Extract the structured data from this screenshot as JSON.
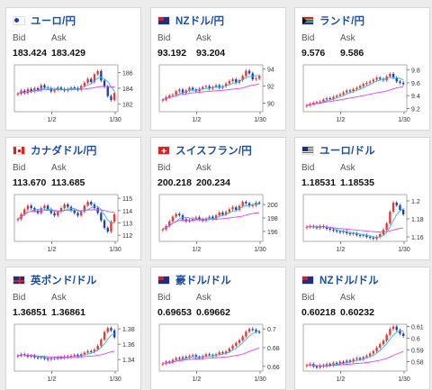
{
  "labels": {
    "bid": "Bid",
    "ask": "Ask"
  },
  "colors": {
    "up": "#e53935",
    "down": "#1f3fb0",
    "ma_short": "#29b6f6",
    "ma_long": "#e040fb",
    "title": "#1a4fa0"
  },
  "cards": [
    {
      "name": "ユーロ/円",
      "flag_icon": "flag-eu-icon",
      "bid": "183.424",
      "ask": "183.429",
      "chart_data": {
        "type": "candlestick",
        "x_ticks": [
          "1/2",
          "1/30"
        ],
        "y_ticks": [
          "186",
          "184",
          "182"
        ],
        "ylim": [
          181,
          187
        ],
        "close": [
          183.3,
          183.7,
          183.4,
          183.9,
          183.6,
          184.0,
          183.8,
          184.4,
          184.1,
          184.0,
          183.6,
          183.8,
          184.1,
          183.9,
          183.7,
          183.9,
          184.1,
          184.0,
          183.8,
          184.3,
          184.7,
          185.2,
          184.8,
          185.8,
          186.2,
          185.0,
          184.2,
          183.0,
          182.5,
          183.4
        ]
      }
    },
    {
      "name": "NZドル/円",
      "flag_icon": "flag-nz-icon",
      "bid": "93.192",
      "ask": "93.204",
      "chart_data": {
        "type": "candlestick",
        "x_ticks": [
          "1/2",
          "1/30"
        ],
        "y_ticks": [
          "94",
          "92",
          "90"
        ],
        "ylim": [
          89,
          94.5
        ],
        "close": [
          90.4,
          90.7,
          90.9,
          91.0,
          91.4,
          91.6,
          91.2,
          91.5,
          91.8,
          91.6,
          91.4,
          91.7,
          91.9,
          92.0,
          91.7,
          91.9,
          92.1,
          91.8,
          92.0,
          92.3,
          92.6,
          92.8,
          92.4,
          92.7,
          93.2,
          93.8,
          93.5,
          92.8,
          92.9,
          93.2
        ]
      }
    },
    {
      "name": "ランド/円",
      "flag_icon": "flag-za-icon",
      "bid": "9.576",
      "ask": "9.586",
      "chart_data": {
        "type": "candlestick",
        "x_ticks": [
          "1/2",
          "1/30"
        ],
        "y_ticks": [
          "9.8",
          "9.6",
          "9.4",
          "9.2"
        ],
        "ylim": [
          9.15,
          9.88
        ],
        "close": [
          9.25,
          9.27,
          9.29,
          9.3,
          9.31,
          9.34,
          9.36,
          9.35,
          9.38,
          9.4,
          9.42,
          9.45,
          9.48,
          9.47,
          9.5,
          9.52,
          9.55,
          9.58,
          9.6,
          9.62,
          9.65,
          9.68,
          9.66,
          9.64,
          9.7,
          9.74,
          9.68,
          9.62,
          9.6,
          9.58
        ]
      }
    },
    {
      "name": "カナダドル/円",
      "flag_icon": "flag-ca-icon",
      "bid": "113.670",
      "ask": "113.685",
      "chart_data": {
        "type": "candlestick",
        "x_ticks": [
          "1/2",
          "1/30"
        ],
        "y_ticks": [
          "115",
          "114",
          "113",
          "112"
        ],
        "ylim": [
          111.5,
          115.3
        ],
        "close": [
          113.3,
          113.7,
          114.1,
          114.4,
          114.2,
          114.0,
          113.8,
          114.2,
          114.4,
          114.1,
          113.8,
          113.6,
          113.9,
          114.2,
          114.5,
          114.3,
          114.0,
          113.8,
          113.6,
          113.9,
          114.4,
          114.7,
          114.5,
          114.2,
          113.8,
          113.2,
          112.6,
          112.3,
          113.1,
          113.7
        ]
      }
    },
    {
      "name": "スイスフラン/円",
      "flag_icon": "flag-ch-icon",
      "bid": "200.218",
      "ask": "200.234",
      "chart_data": {
        "type": "candlestick",
        "x_ticks": [
          "1/2",
          "1/30"
        ],
        "y_ticks": [
          "200",
          "198",
          "196"
        ],
        "ylim": [
          194.5,
          201.5
        ],
        "close": [
          196.3,
          196.8,
          197.5,
          198.2,
          198.6,
          198.4,
          197.8,
          197.5,
          197.7,
          197.9,
          198.1,
          197.8,
          197.6,
          197.9,
          198.2,
          197.9,
          198.4,
          198.8,
          198.5,
          198.9,
          199.3,
          199.6,
          199.2,
          199.8,
          200.4,
          200.2,
          199.8,
          199.9,
          200.3,
          200.2
        ]
      }
    },
    {
      "name": "ユーロ/ドル",
      "flag_icon": "flag-us-icon",
      "bid": "1.18531",
      "ask": "1.18535",
      "chart_data": {
        "type": "candlestick",
        "x_ticks": [
          "1/2",
          "1/30"
        ],
        "y_ticks": [
          "1.2",
          "1.18",
          "1.16"
        ],
        "ylim": [
          1.155,
          1.207
        ],
        "close": [
          1.171,
          1.172,
          1.171,
          1.17,
          1.172,
          1.171,
          1.169,
          1.168,
          1.167,
          1.166,
          1.165,
          1.166,
          1.164,
          1.163,
          1.164,
          1.162,
          1.161,
          1.162,
          1.16,
          1.159,
          1.158,
          1.16,
          1.163,
          1.168,
          1.175,
          1.188,
          1.198,
          1.195,
          1.19,
          1.185
        ]
      }
    },
    {
      "name": "英ポンド/ドル",
      "flag_icon": "flag-gb-icon",
      "bid": "1.36851",
      "ask": "1.36861",
      "chart_data": {
        "type": "candlestick",
        "x_ticks": [
          "1/2",
          "1/30"
        ],
        "y_ticks": [
          "1.38",
          "1.36",
          "1.34"
        ],
        "ylim": [
          1.325,
          1.386
        ],
        "close": [
          1.345,
          1.347,
          1.346,
          1.344,
          1.345,
          1.343,
          1.342,
          1.343,
          1.341,
          1.34,
          1.342,
          1.341,
          1.343,
          1.342,
          1.344,
          1.343,
          1.345,
          1.346,
          1.344,
          1.347,
          1.349,
          1.351,
          1.35,
          1.353,
          1.358,
          1.366,
          1.376,
          1.381,
          1.378,
          1.369
        ]
      }
    },
    {
      "name": "豪ドル/ドル",
      "flag_icon": "flag-au-icon",
      "bid": "0.69653",
      "ask": "0.69662",
      "chart_data": {
        "type": "candlestick",
        "x_ticks": [
          "1/2",
          "1/30"
        ],
        "y_ticks": [
          "0.7",
          "0.68",
          "0.66"
        ],
        "ylim": [
          0.655,
          0.705
        ],
        "close": [
          0.663,
          0.665,
          0.664,
          0.667,
          0.669,
          0.668,
          0.67,
          0.669,
          0.671,
          0.672,
          0.67,
          0.669,
          0.671,
          0.673,
          0.672,
          0.671,
          0.673,
          0.675,
          0.674,
          0.676,
          0.679,
          0.682,
          0.685,
          0.688,
          0.692,
          0.697,
          0.7,
          0.699,
          0.697,
          0.6965
        ]
      }
    },
    {
      "name": "NZドル/ドル",
      "flag_icon": "flag-au-icon",
      "bid": "0.60218",
      "ask": "0.60232",
      "chart_data": {
        "type": "candlestick",
        "x_ticks": [
          "1/2",
          "1/30"
        ],
        "y_ticks": [
          "0.61",
          "0.6",
          "0.59",
          "0.58"
        ],
        "ylim": [
          0.572,
          0.612
        ],
        "close": [
          0.577,
          0.578,
          0.576,
          0.575,
          0.577,
          0.576,
          0.578,
          0.577,
          0.579,
          0.578,
          0.58,
          0.579,
          0.581,
          0.58,
          0.582,
          0.583,
          0.582,
          0.584,
          0.585,
          0.587,
          0.589,
          0.592,
          0.595,
          0.598,
          0.603,
          0.608,
          0.61,
          0.607,
          0.604,
          0.602
        ]
      }
    }
  ]
}
